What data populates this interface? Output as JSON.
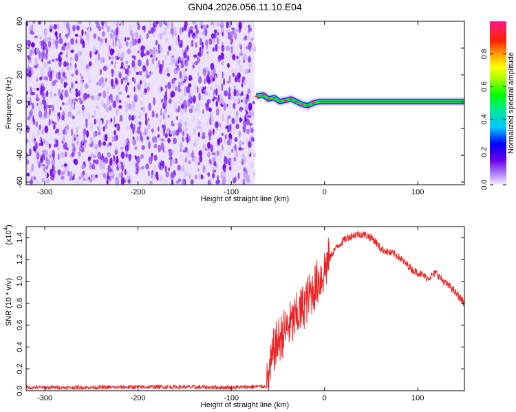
{
  "chart_data": [
    {
      "type": "heatmap",
      "title": "GN04.2026.056.11.10.E04",
      "xlabel": "Height of straight line (km)",
      "ylabel": "Frequency (Hz)",
      "xlim": [
        -320,
        150
      ],
      "ylim": [
        -62,
        60
      ],
      "x_ticks": [
        -300,
        -200,
        -100,
        0,
        100
      ],
      "x_tick_labels": [
        "-300",
        "-200",
        "-100",
        "0",
        "100"
      ],
      "y_ticks": [
        -60,
        -40,
        -20,
        0,
        20,
        40,
        60
      ],
      "y_tick_labels": [
        "-60",
        "-40",
        "-20",
        "0",
        "20",
        "40",
        "60"
      ],
      "noise_region_x": [
        -320,
        -75
      ],
      "signal_track": [
        {
          "x": -73,
          "y": 4
        },
        {
          "x": -66,
          "y": 5
        },
        {
          "x": -60,
          "y": 2
        },
        {
          "x": -54,
          "y": 3
        },
        {
          "x": -48,
          "y": 0
        },
        {
          "x": -42,
          "y": 1
        },
        {
          "x": -36,
          "y": 2
        },
        {
          "x": -30,
          "y": 0
        },
        {
          "x": -24,
          "y": -2
        },
        {
          "x": -18,
          "y": -3
        },
        {
          "x": -12,
          "y": -1
        },
        {
          "x": -6,
          "y": 0
        },
        {
          "x": 0,
          "y": 0
        },
        {
          "x": 50,
          "y": 0
        },
        {
          "x": 100,
          "y": 0
        },
        {
          "x": 150,
          "y": 0
        }
      ],
      "colorbar": {
        "label": "Normalized spectral amplitude",
        "range": [
          0,
          1
        ],
        "ticks": [
          0.0,
          0.2,
          0.4,
          0.6,
          0.8
        ],
        "tick_labels": [
          "0.0",
          "0.2",
          "0.4",
          "0.6",
          "0.8"
        ]
      }
    },
    {
      "type": "line",
      "xlabel": "Height of straight line (km)",
      "ylabel": "SNR (10 * v/v)",
      "y_scale_label": "(x10",
      "y_scale_exp": "4",
      "y_scale_close": ")",
      "xlim": [
        -320,
        150
      ],
      "ylim": [
        0,
        1.5
      ],
      "x_ticks": [
        -300,
        -200,
        -100,
        0,
        100
      ],
      "x_tick_labels": [
        "-300",
        "-200",
        "-100",
        "0",
        "100"
      ],
      "y_ticks": [
        0.0,
        0.2,
        0.4,
        0.6,
        0.8,
        1.0,
        1.2,
        1.4
      ],
      "y_tick_labels": [
        "0.0",
        "0.2",
        "0.4",
        "0.6",
        "0.8",
        "1.0",
        "1.2",
        "1.4"
      ],
      "series": [
        {
          "name": "SNR",
          "color": "#ee2222",
          "x": [
            -320,
            -250,
            -180,
            -100,
            -62,
            -58,
            -54,
            -50,
            -46,
            -42,
            -38,
            -34,
            -30,
            -26,
            -22,
            -18,
            -14,
            -10,
            -6,
            -2,
            2,
            6,
            10,
            15,
            20,
            25,
            30,
            35,
            40,
            45,
            50,
            55,
            60,
            65,
            70,
            75,
            80,
            85,
            90,
            95,
            100,
            105,
            110,
            115,
            120,
            125,
            130,
            135,
            140,
            145,
            150
          ],
          "y": [
            0.03,
            0.03,
            0.035,
            0.03,
            0.04,
            0.2,
            0.38,
            0.45,
            0.5,
            0.55,
            0.6,
            0.62,
            0.68,
            0.72,
            0.78,
            0.84,
            0.9,
            0.95,
            1.02,
            1.06,
            1.15,
            1.22,
            1.28,
            1.33,
            1.37,
            1.4,
            1.42,
            1.43,
            1.43,
            1.42,
            1.4,
            1.36,
            1.3,
            1.28,
            1.26,
            1.25,
            1.22,
            1.18,
            1.14,
            1.1,
            1.08,
            1.06,
            1.03,
            1.05,
            1.08,
            1.02,
            0.98,
            0.95,
            0.9,
            0.85,
            0.8
          ]
        }
      ]
    }
  ]
}
